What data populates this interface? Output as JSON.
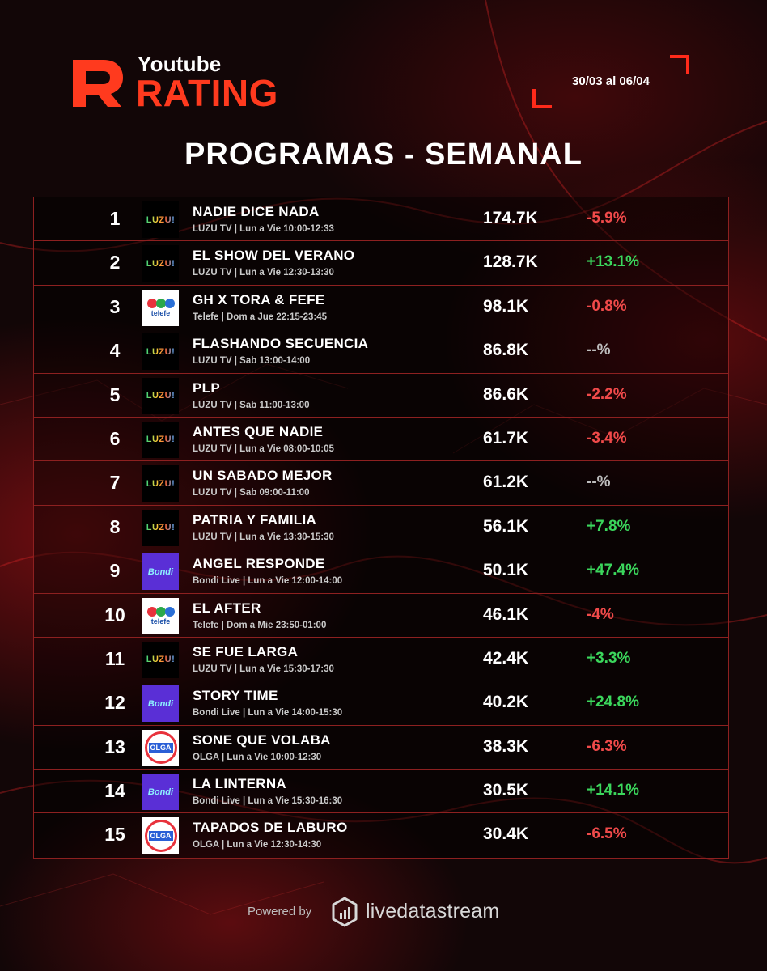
{
  "brand": {
    "line1": "Youtube",
    "line2": "RATING",
    "accent_color": "#ff3a1e"
  },
  "date_range": "30/03 al 06/04",
  "title": "PROGRAMAS - SEMANAL",
  "rows": [
    {
      "rank": "1",
      "channel": "luzu",
      "name": "NADIE DICE NADA",
      "sub": "LUZU TV | Lun a Vie 10:00-12:33",
      "views": "174.7K",
      "change": "-5.9%",
      "trend": "neg"
    },
    {
      "rank": "2",
      "channel": "luzu",
      "name": "EL SHOW DEL VERANO",
      "sub": "LUZU TV | Lun a Vie 12:30-13:30",
      "views": "128.7K",
      "change": "+13.1%",
      "trend": "pos"
    },
    {
      "rank": "3",
      "channel": "telefe",
      "name": "GH X TORA & FEFE",
      "sub": "Telefe | Dom a Jue 22:15-23:45",
      "views": "98.1K",
      "change": "-0.8%",
      "trend": "neg"
    },
    {
      "rank": "4",
      "channel": "luzu",
      "name": "FLASHANDO SECUENCIA",
      "sub": "LUZU TV | Sab 13:00-14:00",
      "views": "86.8K",
      "change": "--%",
      "trend": "neu"
    },
    {
      "rank": "5",
      "channel": "luzu",
      "name": "PLP",
      "sub": "LUZU TV | Sab 11:00-13:00",
      "views": "86.6K",
      "change": "-2.2%",
      "trend": "neg"
    },
    {
      "rank": "6",
      "channel": "luzu",
      "name": "ANTES QUE NADIE",
      "sub": "LUZU TV | Lun a Vie 08:00-10:05",
      "views": "61.7K",
      "change": "-3.4%",
      "trend": "neg"
    },
    {
      "rank": "7",
      "channel": "luzu",
      "name": "UN SABADO MEJOR",
      "sub": "LUZU TV | Sab 09:00-11:00",
      "views": "61.2K",
      "change": "--%",
      "trend": "neu"
    },
    {
      "rank": "8",
      "channel": "luzu",
      "name": "PATRIA Y FAMILIA",
      "sub": "LUZU TV | Lun a Vie 13:30-15:30",
      "views": "56.1K",
      "change": "+7.8%",
      "trend": "pos"
    },
    {
      "rank": "9",
      "channel": "bondi",
      "name": "ANGEL RESPONDE",
      "sub": "Bondi Live | Lun a Vie 12:00-14:00",
      "views": "50.1K",
      "change": "+47.4%",
      "trend": "pos"
    },
    {
      "rank": "10",
      "channel": "telefe",
      "name": "EL AFTER",
      "sub": "Telefe | Dom a Mie 23:50-01:00",
      "views": "46.1K",
      "change": "-4%",
      "trend": "neg"
    },
    {
      "rank": "11",
      "channel": "luzu",
      "name": "SE FUE LARGA",
      "sub": "LUZU TV | Lun a Vie 15:30-17:30",
      "views": "42.4K",
      "change": "+3.3%",
      "trend": "pos"
    },
    {
      "rank": "12",
      "channel": "bondi",
      "name": "STORY TIME",
      "sub": "Bondi Live | Lun a Vie 14:00-15:30",
      "views": "40.2K",
      "change": "+24.8%",
      "trend": "pos"
    },
    {
      "rank": "13",
      "channel": "olga",
      "name": "SONE QUE VOLABA",
      "sub": "OLGA | Lun a Vie 10:00-12:30",
      "views": "38.3K",
      "change": "-6.3%",
      "trend": "neg"
    },
    {
      "rank": "14",
      "channel": "bondi",
      "name": "LA LINTERNA",
      "sub": "Bondi Live | Lun a Vie 15:30-16:30",
      "views": "30.5K",
      "change": "+14.1%",
      "trend": "pos"
    },
    {
      "rank": "15",
      "channel": "olga",
      "name": "TAPADOS DE LABURO",
      "sub": "OLGA | Lun a Vie 12:30-14:30",
      "views": "30.4K",
      "change": "-6.5%",
      "trend": "neg"
    }
  ],
  "channel_logos": {
    "luzu": {
      "text": "LUZU!",
      "icon": "luzu-logo-icon"
    },
    "telefe": {
      "text": "telefe",
      "icon": "telefe-logo-icon"
    },
    "bondi": {
      "text": "Bondi",
      "icon": "bondi-logo-icon"
    },
    "olga": {
      "text": "OLGA",
      "icon": "olga-logo-icon"
    }
  },
  "footer": {
    "powered_by": "Powered by",
    "provider": "livedatastream"
  },
  "colors": {
    "negative": "#f04a4a",
    "positive": "#3bd65c",
    "neutral": "#bdbdbd",
    "table_border": "#8d2020"
  }
}
